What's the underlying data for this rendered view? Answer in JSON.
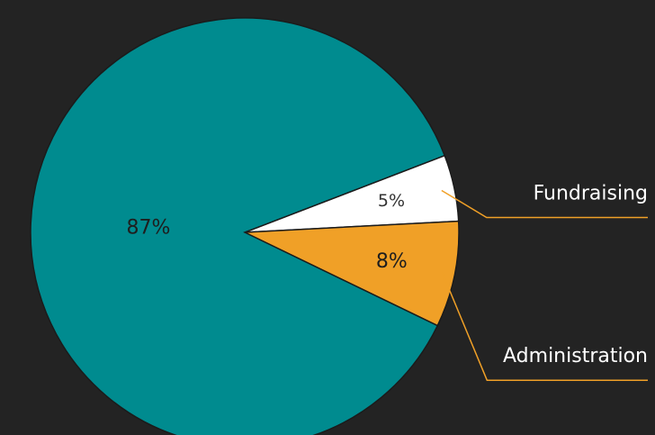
{
  "chart_data": {
    "type": "pie",
    "categories": [
      "Fundraising",
      "Administration",
      null
    ],
    "values": [
      5,
      8,
      87
    ],
    "value_labels": [
      "5%",
      "8%",
      "87%"
    ],
    "colors": [
      "#ffffff",
      "#f0a027",
      "#008b8f"
    ]
  }
}
